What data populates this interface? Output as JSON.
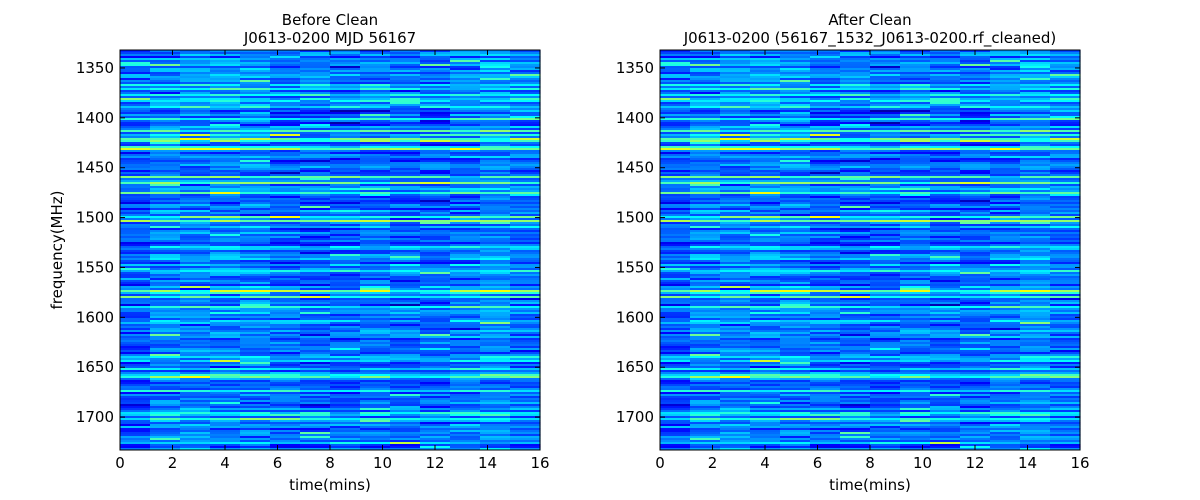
{
  "chart_data": [
    {
      "type": "heatmap",
      "title": "Before Clean",
      "subtitle": "J0613-0200 MJD 56167",
      "xlabel": "time(mins)",
      "ylabel": "frequency(MHz)",
      "xlim": [
        0,
        16
      ],
      "ylim": [
        1733,
        1332
      ],
      "xticks": [
        "0",
        "2",
        "4",
        "6",
        "8",
        "10",
        "12",
        "14",
        "16"
      ],
      "yticks": [
        "1350",
        "1400",
        "1450",
        "1500",
        "1550",
        "1600",
        "1650",
        "1700"
      ],
      "colormap": "jet",
      "n_time_bins": 14,
      "bright_channels_mhz": [
        1416,
        1420,
        1430,
        1465,
        1503,
        1573,
        1578
      ]
    },
    {
      "type": "heatmap",
      "title": "After Clean",
      "subtitle": "J0613-0200  (56167_1532_J0613-0200.rf_cleaned)",
      "xlabel": "time(mins)",
      "ylabel": "",
      "xlim": [
        0,
        16
      ],
      "ylim": [
        1733,
        1332
      ],
      "xticks": [
        "0",
        "2",
        "4",
        "6",
        "8",
        "10",
        "12",
        "14",
        "16"
      ],
      "yticks": [
        "1350",
        "1400",
        "1450",
        "1500",
        "1550",
        "1600",
        "1650",
        "1700"
      ],
      "colormap": "jet",
      "n_time_bins": 14,
      "bright_channels_mhz": [
        1416,
        1420,
        1430,
        1465,
        1503,
        1573,
        1578
      ]
    }
  ]
}
